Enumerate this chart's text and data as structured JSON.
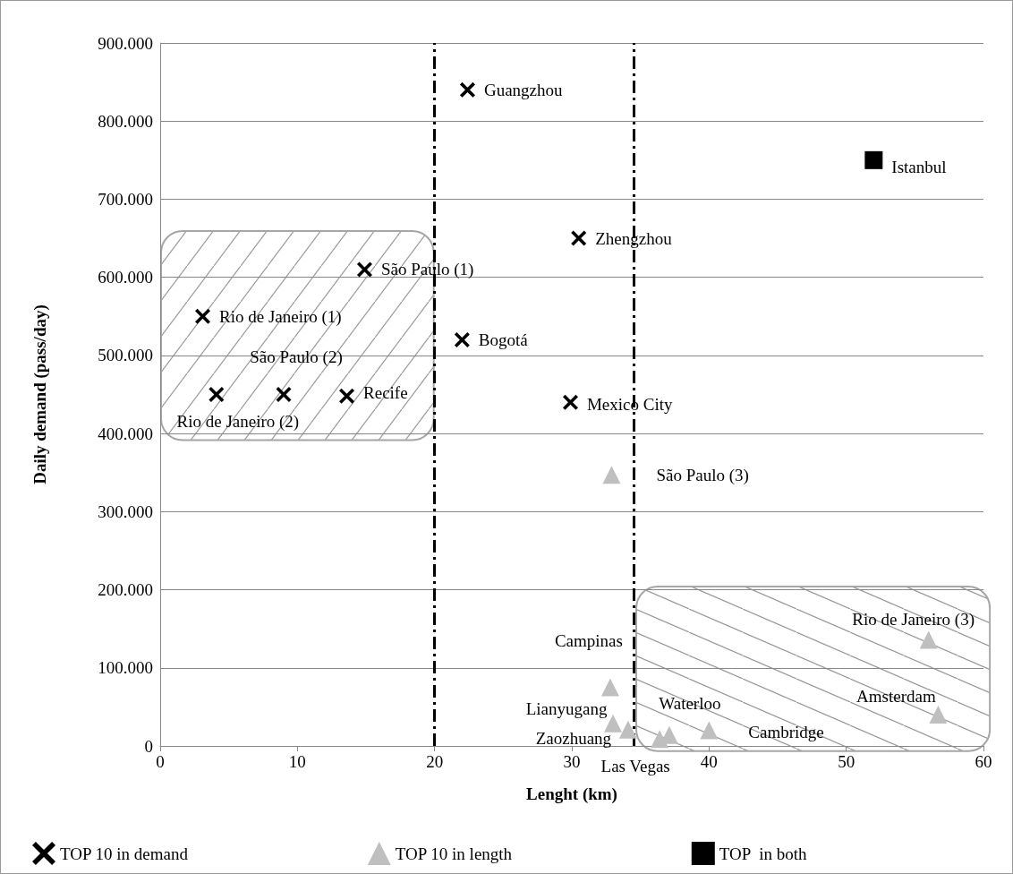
{
  "chart_data": {
    "type": "scatter",
    "xlabel": "Lenght (km)",
    "ylabel": "Daily demand (pass/day)",
    "xlim": [
      0,
      60
    ],
    "xticks": [
      0,
      10,
      20,
      30,
      40,
      50,
      60
    ],
    "ylim": [
      0,
      900000
    ],
    "yticks": [
      0,
      {
        "value": 100000,
        "label": "100.000"
      },
      {
        "value": 200000,
        "label": "200.000"
      },
      {
        "value": 300000,
        "label": "300.000"
      },
      {
        "value": 400000,
        "label": "400.000"
      },
      {
        "value": 500000,
        "label": "500.000"
      },
      {
        "value": 600000,
        "label": "600.000"
      },
      {
        "value": 700000,
        "label": "700.000"
      },
      {
        "value": 800000,
        "label": "800.000"
      },
      {
        "value": 900000,
        "label": "900.000"
      }
    ],
    "grid": "y",
    "legend": "bottom",
    "series": [
      {
        "name": "TOP 10 in demand",
        "color": "#000000",
        "marker": "cross",
        "x": [
          22.4,
          30.5,
          14.9,
          3.1,
          22.0,
          9.0,
          4.1,
          13.6,
          29.9
        ],
        "values": [
          840000,
          650000,
          610000,
          550000,
          520000,
          450000,
          450000,
          448000,
          440000
        ]
      },
      {
        "name": "TOP 10 in length",
        "color": "#bfbfbf",
        "marker": "triangle",
        "x": [
          32.9,
          56.0,
          32.8,
          33.0,
          34.1,
          36.4,
          37.1,
          40.0,
          56.7
        ],
        "values": [
          347000,
          136000,
          75000,
          29000,
          21000,
          9000,
          14000,
          20000,
          40000
        ]
      },
      {
        "name": "TOP  in both",
        "color": "#000000",
        "marker": "square",
        "x": [
          52.0
        ],
        "values": [
          750000
        ]
      }
    ],
    "annotations": [
      {
        "text": "Guangzhou",
        "x": 22.4,
        "y": 840000
      },
      {
        "text": "Istanbul",
        "x": 52.0,
        "y": 750000
      },
      {
        "text": "Zhengzhou",
        "x": 30.5,
        "y": 650000
      },
      {
        "text": "São Paulo (1)",
        "x": 14.9,
        "y": 610000
      },
      {
        "text": "Rio de Janeiro (1)",
        "x": 3.1,
        "y": 550000
      },
      {
        "text": "Bogotá",
        "x": 22.0,
        "y": 520000
      },
      {
        "text": "São Paulo (2)",
        "x": 9.0,
        "y": 450000
      },
      {
        "text": "Rio de Janeiro (2)",
        "x": 4.1,
        "y": 450000
      },
      {
        "text": "Recife",
        "x": 13.6,
        "y": 448000
      },
      {
        "text": "Mexico City",
        "x": 29.9,
        "y": 440000
      },
      {
        "text": "São Paulo (3)",
        "x": 32.9,
        "y": 347000
      },
      {
        "text": "Rio de Janeiro (3)",
        "x": 56.0,
        "y": 136000
      },
      {
        "text": "Campinas",
        "x": 32.8,
        "y": 75000
      },
      {
        "text": "Lianyugang",
        "x": 33.0,
        "y": 29000
      },
      {
        "text": "Zaozhuang",
        "x": 34.1,
        "y": 21000
      },
      {
        "text": "Las Vegas",
        "x": 36.4,
        "y": 9000
      },
      {
        "text": "Waterloo",
        "x": 37.1,
        "y": 14000
      },
      {
        "text": "Cambridge",
        "x": 40.0,
        "y": 20000
      },
      {
        "text": "Amsterdam",
        "x": 56.7,
        "y": 40000
      }
    ],
    "ref_lines": [
      {
        "axis": "x",
        "value": 20,
        "line_style": "dashed",
        "color": "#000000"
      },
      {
        "axis": "x",
        "value": 34.5,
        "line_style": "dashed",
        "color": "#000000"
      }
    ]
  }
}
